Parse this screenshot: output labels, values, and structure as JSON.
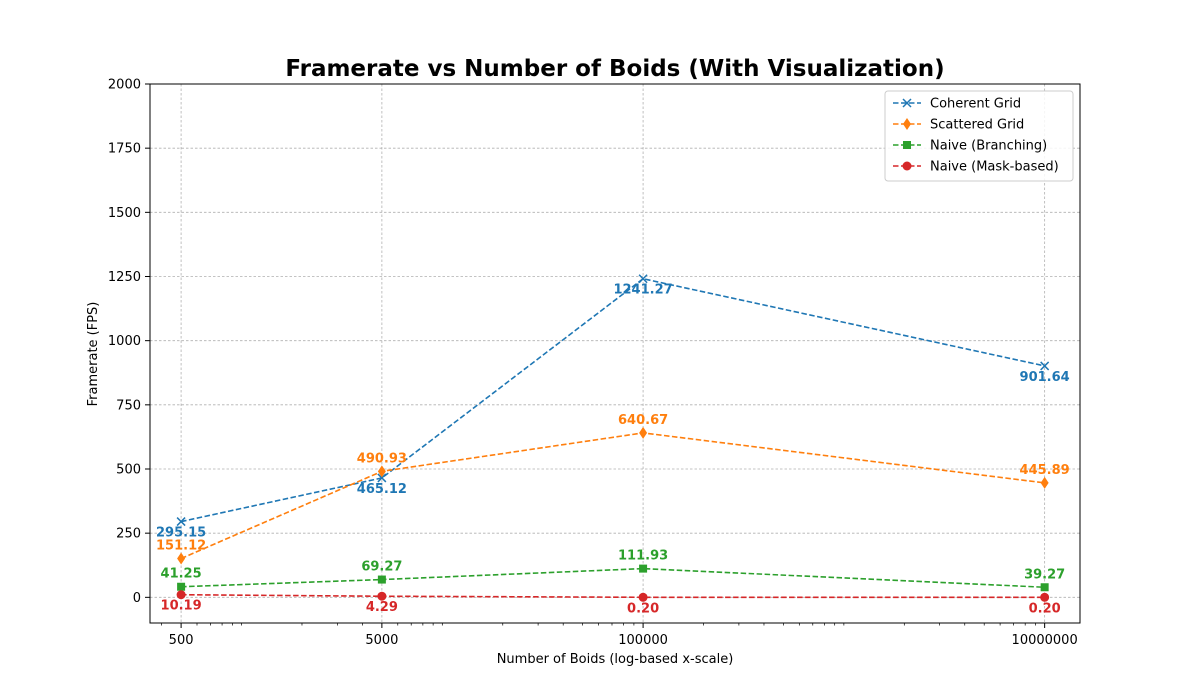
{
  "chart_data": {
    "type": "line",
    "title": "Framerate vs Number of Boids (With Visualization)",
    "xlabel": "Number of Boids (log-based x-scale)",
    "ylabel": "Framerate (FPS)",
    "x_scale": "log",
    "x": [
      500,
      5000,
      100000,
      10000000
    ],
    "x_tick_labels": [
      "500",
      "5000",
      "100000",
      "10000000"
    ],
    "xlim": [
      350,
      15000000
    ],
    "ylim": [
      -100,
      2000
    ],
    "y_ticks": [
      0,
      250,
      500,
      750,
      1000,
      1250,
      1500,
      1750,
      2000
    ],
    "grid": true,
    "legend_position": "top-right",
    "series": [
      {
        "name": "Coherent Grid",
        "color": "#1f77b4",
        "marker": "x",
        "values": [
          295.15,
          465.12,
          1241.27,
          901.64
        ],
        "labels": [
          "295.15",
          "465.12",
          "1241.27",
          "901.64"
        ],
        "label_side": [
          "below",
          "below",
          "below",
          "below"
        ]
      },
      {
        "name": "Scattered Grid",
        "color": "#ff7f0e",
        "marker": "diamond",
        "values": [
          151.12,
          490.93,
          640.67,
          445.89
        ],
        "labels": [
          "151.12",
          "490.93",
          "640.67",
          "445.89"
        ],
        "label_side": [
          "above",
          "above",
          "above",
          "above"
        ]
      },
      {
        "name": "Naive (Branching)",
        "color": "#2ca02c",
        "marker": "square",
        "values": [
          41.25,
          69.27,
          111.93,
          39.27
        ],
        "labels": [
          "41.25",
          "69.27",
          "111.93",
          "39.27"
        ],
        "label_side": [
          "above",
          "above",
          "above",
          "above"
        ]
      },
      {
        "name": "Naive (Mask-based)",
        "color": "#d62728",
        "marker": "circle",
        "values": [
          10.19,
          4.29,
          0.2,
          0.2
        ],
        "labels": [
          "10.19",
          "4.29",
          "0.20",
          "0.20"
        ],
        "label_side": [
          "below",
          "below",
          "below",
          "below"
        ]
      }
    ]
  }
}
